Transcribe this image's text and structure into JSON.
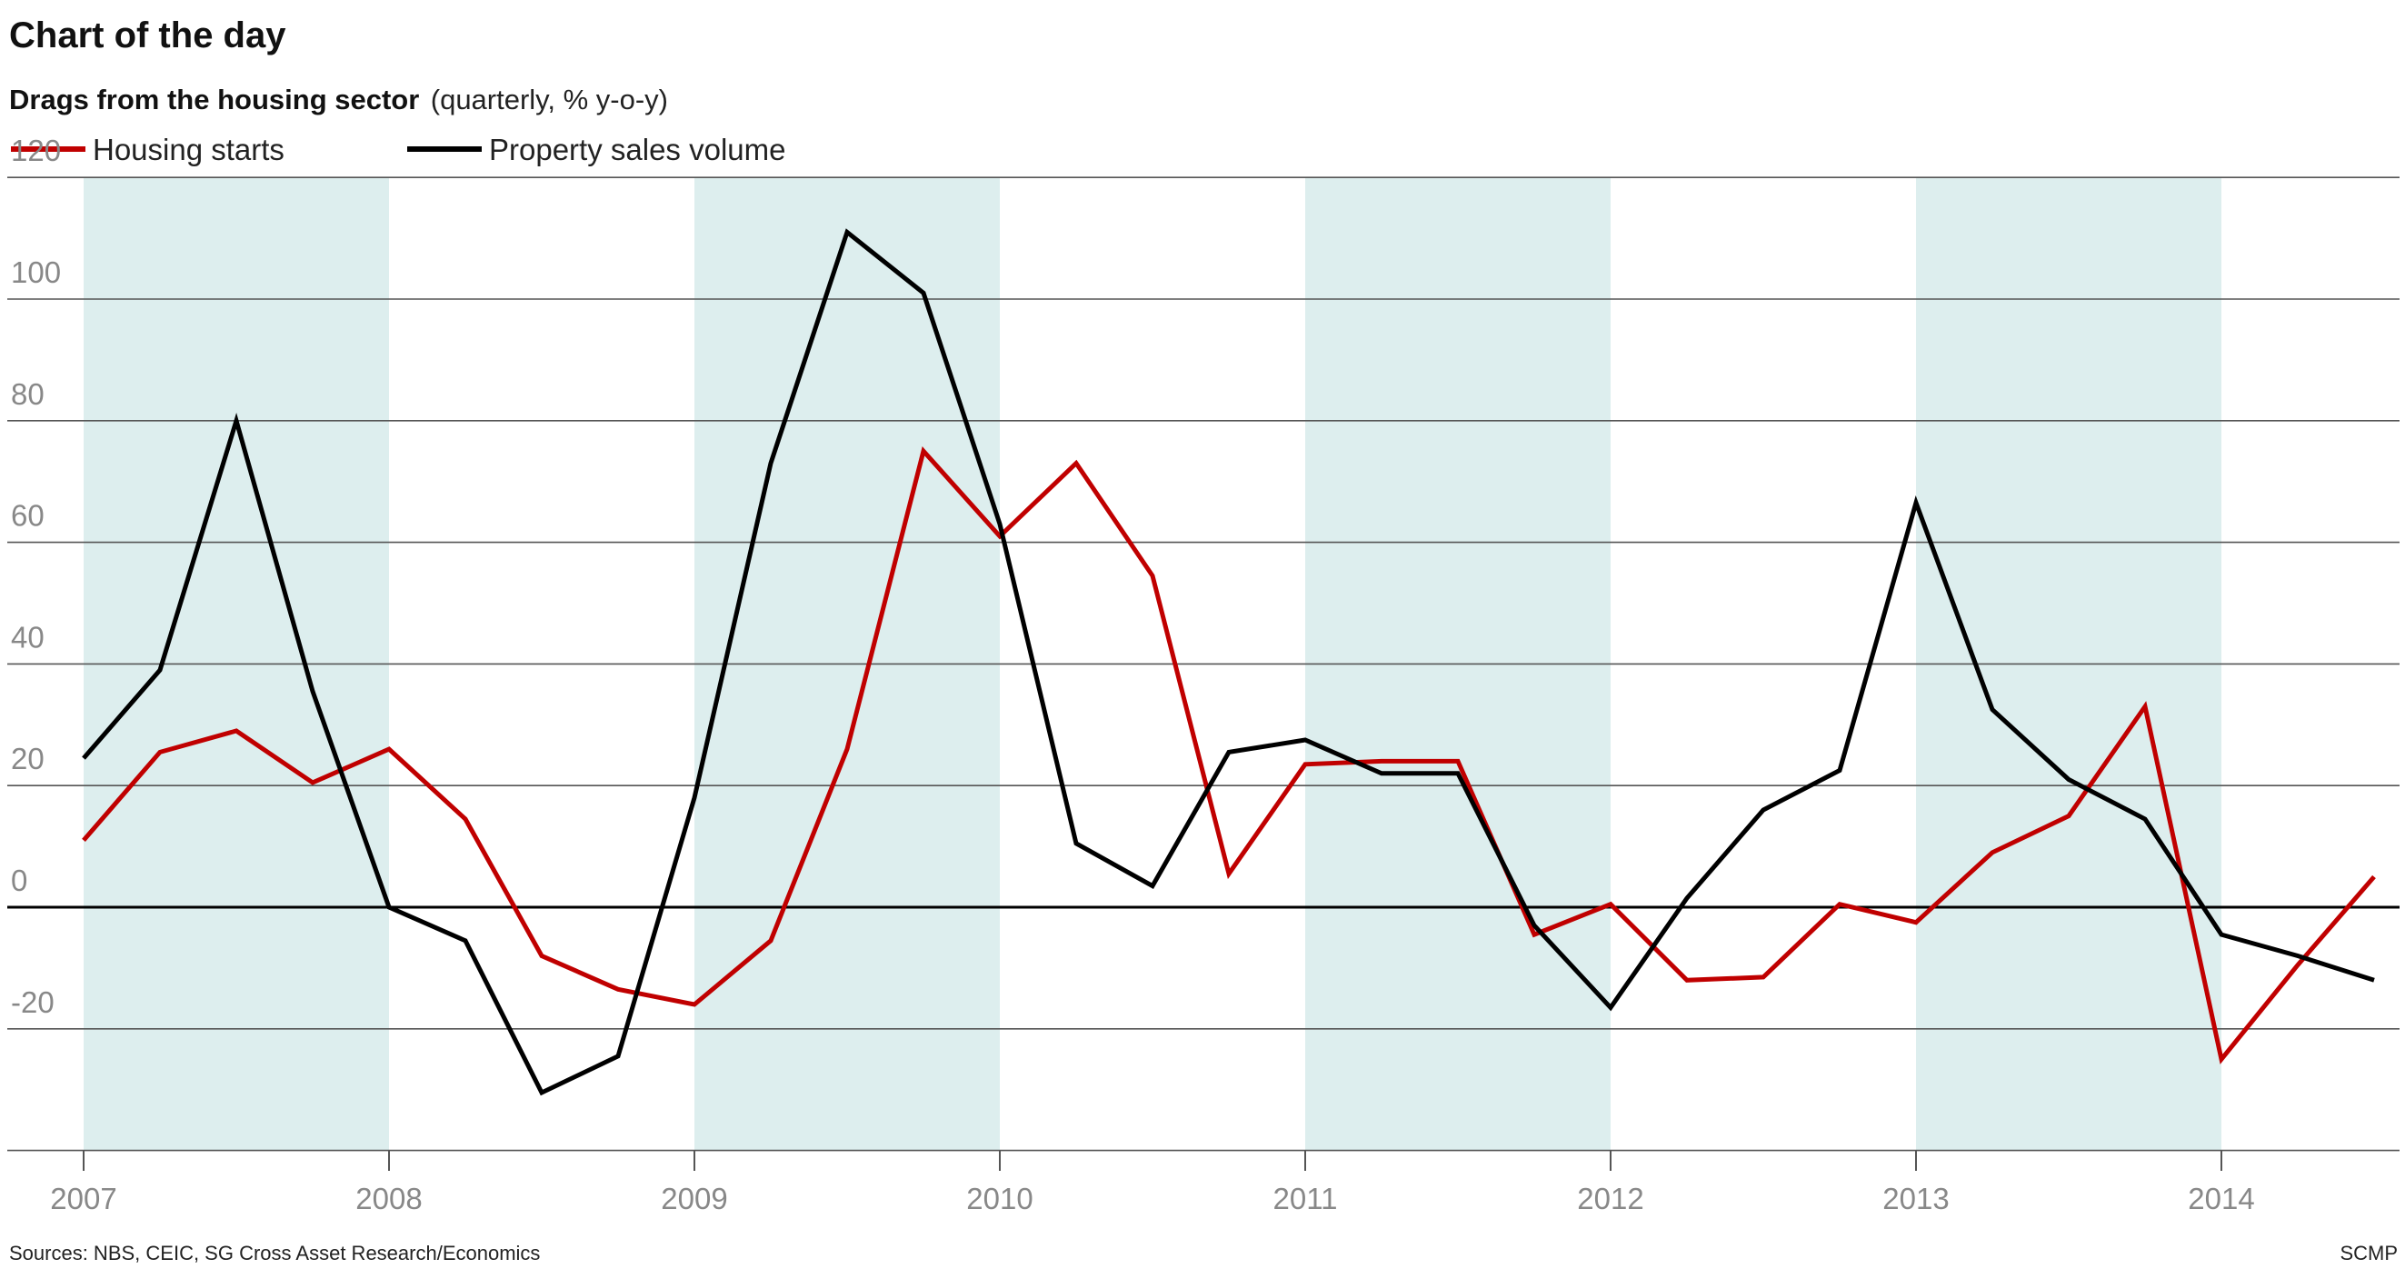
{
  "header": {
    "title": "Chart of the day",
    "subtitle_bold": "Drags from the housing sector",
    "subtitle_rest": "(quarterly, % y-o-y)"
  },
  "footer": {
    "sources": "Sources: NBS, CEIC, SG Cross Asset Research/Economics",
    "credit": "SCMP"
  },
  "colors": {
    "housing_starts": "#c00000",
    "property_sales": "#000000",
    "shade": "#ddeeee",
    "grid": "#555555"
  },
  "chart_data": {
    "type": "line",
    "ylim": [
      -40,
      120
    ],
    "yticks": [
      -20,
      0,
      20,
      40,
      60,
      80,
      100,
      120
    ],
    "xlim": [
      2007,
      2014.5
    ],
    "xticks": [
      2007,
      2008,
      2009,
      2010,
      2011,
      2012,
      2013,
      2014
    ],
    "shaded_years": [
      2007,
      2009,
      2011,
      2013
    ],
    "legend_position": "top-left",
    "x": [
      2007.0,
      2007.25,
      2007.5,
      2007.75,
      2008.0,
      2008.25,
      2008.5,
      2008.75,
      2009.0,
      2009.25,
      2009.5,
      2009.75,
      2010.0,
      2010.25,
      2010.5,
      2010.75,
      2011.0,
      2011.25,
      2011.5,
      2011.75,
      2012.0,
      2012.25,
      2012.5,
      2012.75,
      2013.0,
      2013.25,
      2013.5,
      2013.75,
      2014.0,
      2014.25,
      2014.5
    ],
    "series": [
      {
        "name": "Housing starts",
        "color": "#c00000",
        "values": [
          11,
          25.5,
          29,
          20.5,
          26,
          14.5,
          -8,
          -13.5,
          -16,
          -5.5,
          26,
          75,
          61,
          73,
          54.5,
          5.5,
          23.5,
          24,
          24,
          -4.5,
          0.5,
          -12,
          -11.5,
          0.5,
          -2.5,
          9,
          15,
          33,
          -25,
          -9.5,
          5
        ]
      },
      {
        "name": "Property sales volume",
        "color": "#000000",
        "values": [
          24.5,
          39,
          80,
          35.5,
          0,
          -5.5,
          -30.5,
          -24.5,
          18,
          73,
          111,
          101,
          63,
          10.5,
          3.5,
          25.5,
          27.5,
          22,
          22,
          -3,
          -16.5,
          1.5,
          16,
          22.5,
          66.5,
          32.5,
          21,
          14.5,
          -4.5,
          -8,
          -12
        ]
      }
    ]
  }
}
